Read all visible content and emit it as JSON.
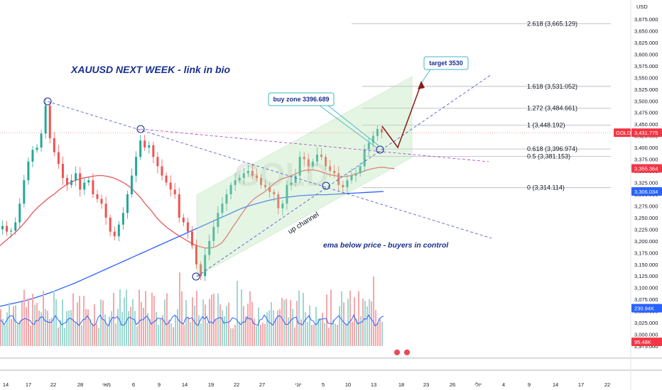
{
  "chart_data": {
    "type": "candlestick",
    "title": "XAUUSD NEXT WEEK - link in bio",
    "currency": "USD",
    "symbol_tag": "GOLD",
    "y_axis": {
      "range": [
        2950,
        3685
      ],
      "ticks": [
        "3,675.000",
        "3,650.000",
        "3,625.000",
        "3,600.000",
        "3,575.000",
        "3,550.000",
        "3,525.000",
        "3,500.000",
        "3,475.000",
        "3,450.000",
        "3,425.000",
        "3,400.000",
        "3,375.000",
        "3,350.000",
        "3,325.000",
        "3,300.000",
        "3,275.000",
        "3,250.000",
        "3,225.000",
        "3,200.000",
        "3,175.000",
        "3,150.000",
        "3,125.000",
        "3,100.000",
        "3,075.000",
        "3,050.000",
        "3,025.000",
        "3,000.000",
        "2,975.000"
      ]
    },
    "x_axis": {
      "ticks": [
        "14",
        "17",
        "22",
        "28",
        "מאי",
        "6",
        "9",
        "14",
        "19",
        "22",
        "27",
        "יוני",
        "5",
        "10",
        "13",
        "18",
        "23",
        "26",
        "יולי",
        "4",
        "9",
        "14",
        "17",
        "22"
      ]
    },
    "price_tags": [
      {
        "label": "3,431.775",
        "value": 3431.775,
        "color": "#f23645"
      },
      {
        "label": "3,355.364",
        "value": 3355.364,
        "color": "#f23645"
      },
      {
        "label": "3,306.034",
        "value": 3306.034,
        "color": "#2962ff"
      },
      {
        "label": "230.94K",
        "value": 3056,
        "color": "#2962ff"
      },
      {
        "label": "95.48K",
        "value": 2984,
        "color": "#f23645"
      }
    ],
    "fibonacci": [
      {
        "label": "2.618 (3,665.129)",
        "value": 3665.129
      },
      {
        "label": "1.618 (3,531.052)",
        "value": 3531.052
      },
      {
        "label": "1.272 (3,484.661)",
        "value": 3484.661
      },
      {
        "label": "1 (3,448.192)",
        "value": 3448.192
      },
      {
        "label": "0.618 (3,396.974)",
        "value": 3396.974
      },
      {
        "label": "0.5 (3,381.153)",
        "value": 3381.153
      },
      {
        "label": "0 (3,314.114)",
        "value": 3314.114
      }
    ],
    "annotations": {
      "buy_zone": "buy zone 3396.689",
      "target": "target 3530",
      "channel": "up channel",
      "note": "ema below price  - buyers in control"
    },
    "series": [
      {
        "name": "price",
        "values": [
          3225,
          3232,
          3220,
          3222,
          3240,
          3280,
          3330,
          3370,
          3395,
          3400,
          3430,
          3490,
          3420,
          3390,
          3365,
          3335,
          3320,
          3330,
          3345,
          3310,
          3325,
          3330,
          3300,
          3290,
          3280,
          3250,
          3220,
          3210,
          3235,
          3260,
          3300,
          3340,
          3380,
          3415,
          3400,
          3405,
          3380,
          3360,
          3340,
          3325,
          3310,
          3300,
          3250,
          3240,
          3220,
          3190,
          3150,
          3125,
          3170,
          3200,
          3230,
          3260,
          3280,
          3300,
          3320,
          3330,
          3335,
          3345,
          3350,
          3340,
          3335,
          3320,
          3315,
          3305,
          3300,
          3270,
          3280,
          3320,
          3325,
          3340,
          3380,
          3375,
          3360,
          3370,
          3385,
          3380,
          3360,
          3350,
          3345,
          3320,
          3315,
          3330,
          3340,
          3345,
          3360,
          3395,
          3410,
          3425,
          3440,
          3432
        ]
      },
      {
        "name": "ema_fast",
        "values": [
          3190,
          3200,
          3210,
          3220,
          3232,
          3245,
          3260,
          3272,
          3282,
          3292,
          3300,
          3310,
          3318,
          3325,
          3330,
          3334,
          3336,
          3338,
          3340,
          3340,
          3338,
          3335,
          3330,
          3324,
          3316,
          3305,
          3293,
          3278,
          3265,
          3250,
          3238,
          3228,
          3220,
          3212,
          3205,
          3198,
          3192,
          3188,
          3185,
          3185,
          3188,
          3195,
          3210,
          3228,
          3245,
          3262,
          3278,
          3290,
          3298,
          3305,
          3315,
          3325,
          3332,
          3336,
          3340,
          3345,
          3350,
          3352,
          3352,
          3350,
          3346,
          3342,
          3340,
          3338,
          3338,
          3340,
          3344,
          3348,
          3352,
          3355,
          3357,
          3358,
          3356,
          3355
        ]
      },
      {
        "name": "ema_slow",
        "values": [
          3060,
          3064,
          3068,
          3072,
          3077,
          3083,
          3089,
          3096,
          3103,
          3110,
          3118,
          3126,
          3134,
          3142,
          3150,
          3158,
          3166,
          3174,
          3182,
          3190,
          3198,
          3206,
          3214,
          3222,
          3230,
          3238,
          3246,
          3254,
          3262,
          3270,
          3276,
          3281,
          3286,
          3290,
          3293,
          3295,
          3297,
          3298,
          3299,
          3299,
          3300,
          3301,
          3302,
          3303,
          3304,
          3305,
          3306
        ]
      }
    ]
  }
}
